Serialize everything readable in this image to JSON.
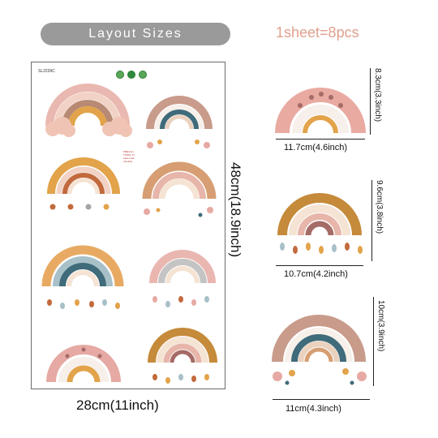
{
  "header": {
    "layout_label": "Layout Sizes",
    "sheet_count": "1sheet=8pcs"
  },
  "sheet": {
    "sku": "SL2239C",
    "height_label": "48cm(18.9inch)",
    "width_label": "28cm(11inch)",
    "note": "PRECAUTIONS: Please read carefully"
  },
  "samples": [
    {
      "width_label": "11.7cm(4.6inch)",
      "height_label": "8.3cm(3.3inch)"
    },
    {
      "width_label": "10.7cm(4.2inch)",
      "height_label": "9.6cm(3.8inch)"
    },
    {
      "width_label": "11cm(4.3inch)",
      "height_label": "10cm(3.9inch)"
    }
  ],
  "colors": {
    "rose": "#e6a9a3",
    "blush": "#f1cbc1",
    "cream": "#f5e3d3",
    "mustard": "#e2a34a",
    "rust": "#c26a3d",
    "teal": "#3f6b7a",
    "mauve": "#a56b66",
    "grey": "#c4c4c4",
    "ochre": "#c58a3a"
  }
}
